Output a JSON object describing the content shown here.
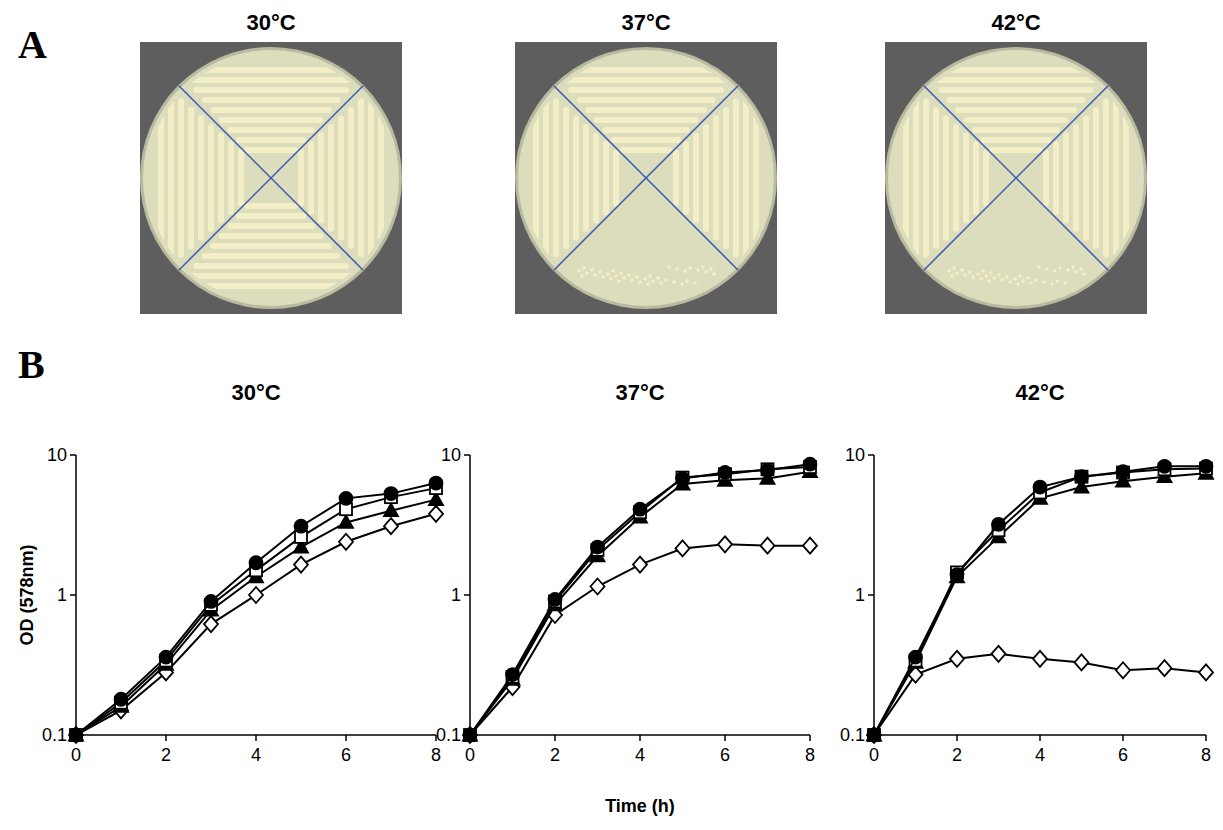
{
  "panel_a": {
    "letter": "A",
    "plates": [
      {
        "title": "30°C"
      },
      {
        "title": "37°C"
      },
      {
        "title": "42°C"
      }
    ]
  },
  "panel_b": {
    "letter": "B",
    "x_label": "Time (h)"
  },
  "chart_data": [
    {
      "type": "line",
      "title": "30°C",
      "y_label": "OD (578nm)",
      "log": "y",
      "xlim": [
        0,
        8
      ],
      "ylim": [
        0.1,
        10
      ],
      "xticks": [
        0,
        2,
        4,
        6,
        8
      ],
      "yticks": [
        0.1,
        1,
        10
      ],
      "grid": false,
      "x": [
        0,
        1,
        2,
        3,
        4,
        5,
        6,
        7,
        8
      ],
      "series": [
        {
          "marker": "circle",
          "color": "#000000",
          "values": [
            0.1,
            0.18,
            0.36,
            0.9,
            1.7,
            3.1,
            4.9,
            5.3,
            6.3
          ]
        },
        {
          "marker": "square",
          "color": "#ffffff",
          "values": [
            0.1,
            0.17,
            0.34,
            0.85,
            1.5,
            2.6,
            4.1,
            5.0,
            5.8
          ]
        },
        {
          "marker": "triangle",
          "color": "#000000",
          "values": [
            0.1,
            0.16,
            0.32,
            0.78,
            1.35,
            2.2,
            3.3,
            4.0,
            4.8
          ]
        },
        {
          "marker": "diamond",
          "color": "#ffffff",
          "values": [
            0.1,
            0.15,
            0.28,
            0.62,
            1.0,
            1.65,
            2.4,
            3.1,
            3.8
          ]
        }
      ]
    },
    {
      "type": "line",
      "title": "37°C",
      "log": "y",
      "xlim": [
        0,
        8
      ],
      "ylim": [
        0.1,
        10
      ],
      "xticks": [
        0,
        2,
        4,
        6,
        8
      ],
      "yticks": [
        0.1,
        1,
        10
      ],
      "grid": false,
      "x": [
        0,
        1,
        2,
        3,
        4,
        5,
        6,
        7,
        8
      ],
      "series": [
        {
          "marker": "circle",
          "color": "#000000",
          "values": [
            0.1,
            0.27,
            0.93,
            2.2,
            4.1,
            6.8,
            7.5,
            7.8,
            8.6
          ]
        },
        {
          "marker": "square",
          "color": "#ffffff",
          "values": [
            0.1,
            0.26,
            0.9,
            2.1,
            3.9,
            6.9,
            7.3,
            7.9,
            8.2
          ]
        },
        {
          "marker": "triangle",
          "color": "#000000",
          "values": [
            0.1,
            0.25,
            0.85,
            1.9,
            3.6,
            6.2,
            6.6,
            6.8,
            7.6
          ]
        },
        {
          "marker": "diamond",
          "color": "#ffffff",
          "values": [
            0.1,
            0.22,
            0.72,
            1.15,
            1.65,
            2.15,
            2.3,
            2.25,
            2.25
          ]
        }
      ]
    },
    {
      "type": "line",
      "title": "42°C",
      "log": "y",
      "xlim": [
        0,
        8
      ],
      "ylim": [
        0.1,
        10
      ],
      "xticks": [
        0,
        2,
        4,
        6,
        8
      ],
      "yticks": [
        0.1,
        1,
        10
      ],
      "grid": false,
      "x": [
        0,
        1,
        2,
        3,
        4,
        5,
        6,
        7,
        8
      ],
      "series": [
        {
          "marker": "circle",
          "color": "#000000",
          "values": [
            0.1,
            0.36,
            1.4,
            3.2,
            5.9,
            7.0,
            7.6,
            8.3,
            8.3
          ]
        },
        {
          "marker": "square",
          "color": "#ffffff",
          "values": [
            0.1,
            0.34,
            1.45,
            2.9,
            5.4,
            7.0,
            7.5,
            7.9,
            8.0
          ]
        },
        {
          "marker": "triangle",
          "color": "#000000",
          "values": [
            0.1,
            0.33,
            1.35,
            2.6,
            4.9,
            5.9,
            6.5,
            7.0,
            7.4
          ]
        },
        {
          "marker": "diamond",
          "color": "#ffffff",
          "values": [
            0.1,
            0.27,
            0.35,
            0.38,
            0.35,
            0.33,
            0.29,
            0.3,
            0.28
          ]
        }
      ]
    }
  ]
}
